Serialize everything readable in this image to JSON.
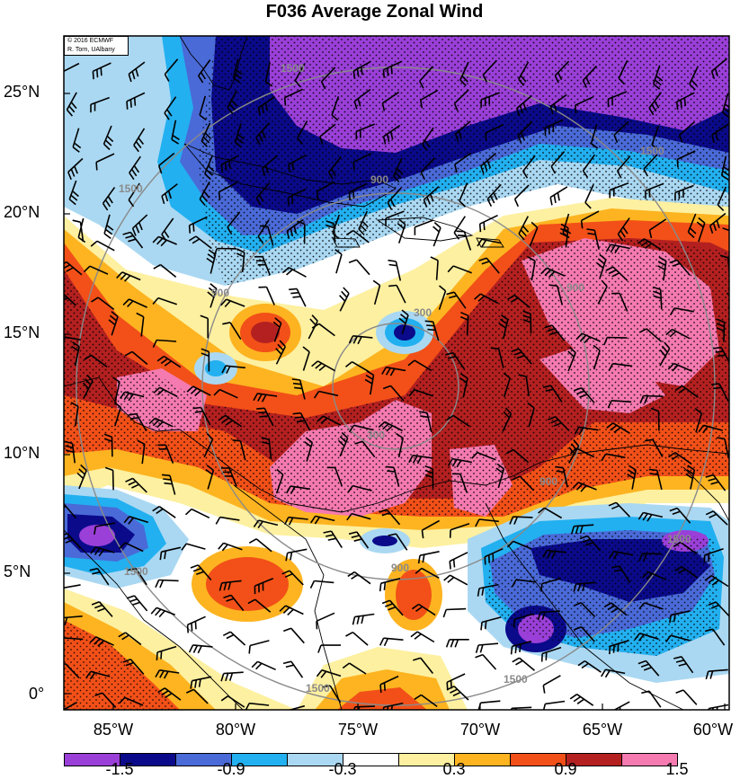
{
  "title": "F036 Average Zonal Wind",
  "credit": [
    "© 2016 ECMWF",
    "R. Torn, UAlbany"
  ],
  "lat_labels": [
    "25°N",
    "20°N",
    "15°N",
    "10°N",
    "5°N",
    "0°"
  ],
  "lon_labels": [
    "85°W",
    "80°W",
    "75°W",
    "70°W",
    "65°W",
    "60°W"
  ],
  "contour_labels": [
    "300",
    "900",
    "1500"
  ],
  "colorbar": {
    "colors": [
      "#9a3fd8",
      "#0a0a8a",
      "#4a6ad8",
      "#22b0f0",
      "#aad8f2",
      "#ffffff",
      "#fdf0a0",
      "#fdb420",
      "#f25018",
      "#b42020",
      "#f57ab0"
    ],
    "labels": [
      "-1.5",
      "-0.9",
      "-0.3",
      "0.3",
      "0.9",
      "1.5"
    ]
  },
  "fill_colors": {
    "purple": "#9a3fd8",
    "navy": "#0a0a8a",
    "blue": "#4a6ad8",
    "cyan": "#22b0f0",
    "lightblue": "#aad8f2",
    "yellow": "#fdf0a0",
    "orange": "#fdb420",
    "redorange": "#f25018",
    "darkred": "#b42020",
    "pink": "#f57ab0"
  }
}
